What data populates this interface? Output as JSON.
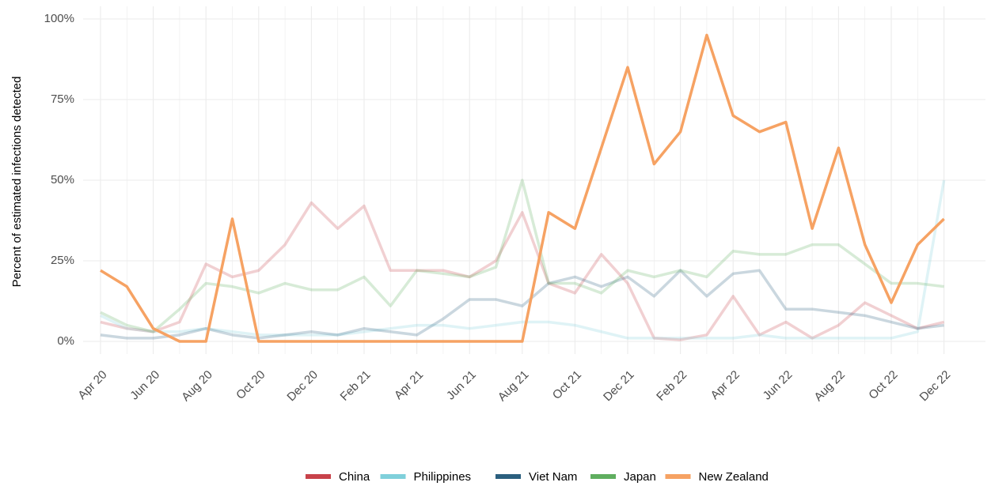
{
  "chart_data": {
    "type": "line",
    "y_label": "Percent of estimated infections detected",
    "categories": [
      "Apr 20",
      null,
      "Jun 20",
      null,
      "Aug 20",
      null,
      "Oct 20",
      null,
      "Dec 20",
      null,
      "Feb 21",
      null,
      "Apr 21",
      null,
      "Jun 21",
      null,
      "Aug 21",
      null,
      "Oct 21",
      null,
      "Dec 21",
      null,
      "Feb 22",
      null,
      "Apr 22",
      null,
      "Jun 22",
      null,
      "Aug 22",
      null,
      "Oct 22",
      null,
      "Dec 22"
    ],
    "series": [
      {
        "name": "China",
        "color": "#c8424a",
        "opacity": 0.25,
        "values": [
          6,
          4,
          3,
          6,
          24,
          20,
          22,
          30,
          43,
          35,
          42,
          22,
          22,
          22,
          20,
          25,
          40,
          18,
          15,
          27,
          18,
          1,
          0.5,
          2,
          14,
          2,
          6,
          1,
          5,
          12,
          8,
          4,
          6
        ]
      },
      {
        "name": "Philippines",
        "color": "#7fd0db",
        "opacity": 0.25,
        "values": [
          8,
          4,
          3,
          3,
          4,
          3,
          2,
          2,
          2,
          2,
          3,
          4,
          5,
          5,
          4,
          5,
          6,
          6,
          5,
          3,
          1,
          1,
          1,
          1,
          1,
          2,
          1,
          1,
          1,
          1,
          1,
          3,
          50
        ]
      },
      {
        "name": "Viet Nam",
        "color": "#2b5f7e",
        "opacity": 0.25,
        "values": [
          2,
          1,
          1,
          2,
          4,
          2,
          1,
          2,
          3,
          2,
          4,
          3,
          2,
          7,
          13,
          13,
          11,
          18,
          20,
          17,
          20,
          14,
          22,
          14,
          21,
          22,
          10,
          10,
          9,
          8,
          6,
          4,
          5
        ]
      },
      {
        "name": "Japan",
        "color": "#5fae5f",
        "opacity": 0.25,
        "values": [
          9,
          5,
          3,
          10,
          18,
          17,
          15,
          18,
          16,
          16,
          20,
          11,
          22,
          21,
          20,
          23,
          50,
          18,
          18,
          15,
          22,
          20,
          22,
          20,
          28,
          27,
          27,
          30,
          30,
          24,
          18,
          18,
          17
        ]
      },
      {
        "name": "New Zealand",
        "color": "#f6a263",
        "opacity": 1,
        "values": [
          22,
          17,
          4,
          0,
          0,
          38,
          0,
          0,
          0,
          0,
          0,
          0,
          0,
          0,
          0,
          0,
          0,
          40,
          35,
          60,
          85,
          55,
          65,
          95,
          70,
          65,
          68,
          35,
          60,
          30,
          12,
          30,
          38
        ]
      }
    ],
    "ylim": [
      0,
      100
    ],
    "yticks": [
      {
        "value": 0,
        "label": "0%"
      },
      {
        "value": 25,
        "label": "25%"
      },
      {
        "value": 50,
        "label": "50%"
      },
      {
        "value": 75,
        "label": "75%"
      },
      {
        "value": 100,
        "label": "100%"
      }
    ],
    "grid": true
  }
}
